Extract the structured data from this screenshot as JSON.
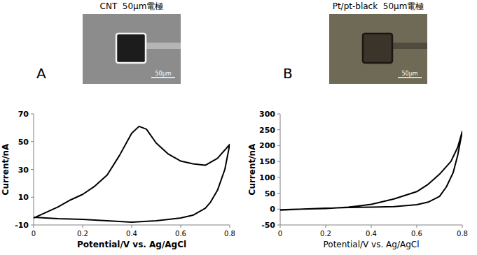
{
  "chart_data": [
    {
      "type": "line",
      "panel_label": "A",
      "title": "CNT  50μm電極",
      "annotations": [
        "50μm"
      ],
      "x_label": "Potential/V vs. Ag/AgCl",
      "y_label": "Current/nA",
      "xlim": [
        0,
        0.8
      ],
      "xticks": [
        0,
        0.2,
        0.4,
        0.6,
        0.8
      ],
      "ylim": [
        -10,
        70
      ],
      "yticks": [
        -10,
        10,
        30,
        50,
        70
      ],
      "grid": false,
      "color": "#000000",
      "series": [
        {
          "x": [
            0,
            0.05,
            0.1,
            0.15,
            0.2,
            0.25,
            0.3,
            0.35,
            0.4,
            0.43,
            0.46,
            0.5,
            0.55,
            0.6,
            0.65,
            0.7,
            0.75,
            0.8,
            0.78,
            0.75,
            0.72,
            0.7,
            0.65,
            0.6,
            0.5,
            0.4,
            0.3,
            0.2,
            0.1,
            0
          ],
          "values": [
            -5,
            -1,
            3,
            8,
            12,
            18,
            26,
            40,
            56,
            61,
            59,
            49,
            41,
            36,
            34,
            33,
            38,
            48,
            30,
            15,
            6,
            2,
            -3,
            -5,
            -7,
            -8,
            -7,
            -6,
            -5.5,
            -4.5
          ]
        }
      ]
    },
    {
      "type": "line",
      "panel_label": "B",
      "title": "Pt/pt-black  50μm電極",
      "annotations": [
        "50μm"
      ],
      "x_label": "Potential/V vs. Ag/AgCl",
      "y_label": "Current/nA",
      "xlim": [
        0,
        0.8
      ],
      "xticks": [
        0,
        0.2,
        0.4,
        0.6,
        0.8
      ],
      "ylim": [
        -50,
        300
      ],
      "yticks": [
        -50,
        0,
        50,
        100,
        150,
        200,
        250,
        300
      ],
      "grid": false,
      "color": "#000000",
      "series": [
        {
          "x": [
            0,
            0.1,
            0.2,
            0.3,
            0.4,
            0.5,
            0.6,
            0.65,
            0.7,
            0.73,
            0.76,
            0.78,
            0.8,
            0.78,
            0.75,
            0.7,
            0.65,
            0.6,
            0.5,
            0.4,
            0.3,
            0.2,
            0.1,
            0
          ],
          "values": [
            -3,
            0,
            3,
            5,
            6,
            8,
            14,
            22,
            40,
            70,
            115,
            170,
            245,
            195,
            150,
            110,
            78,
            55,
            32,
            15,
            6,
            2,
            0,
            -2
          ]
        }
      ]
    }
  ]
}
